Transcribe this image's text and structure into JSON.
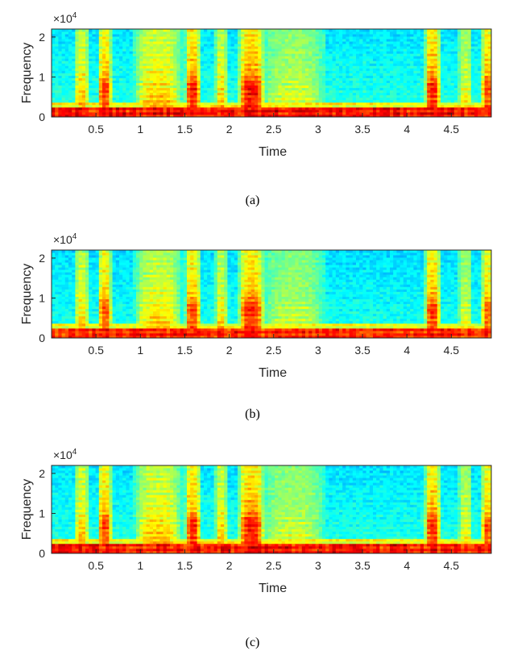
{
  "chart_data": [
    {
      "type": "heatmap",
      "panel_label": "(a)",
      "xlabel": "Time",
      "ylabel": "Frequency",
      "y_multiplier": "×10",
      "y_multiplier_exponent": "4",
      "xlim": [
        0,
        4.95
      ],
      "ylim": [
        0,
        2.2
      ],
      "xticks": [
        0.5,
        1,
        1.5,
        2,
        2.5,
        3,
        3.5,
        4,
        4.5
      ],
      "xtick_labels": [
        "0.5",
        "1",
        "1.5",
        "2",
        "2.5",
        "3",
        "3.5",
        "4",
        "4.5"
      ],
      "yticks": [
        0,
        1,
        2
      ],
      "ytick_labels": [
        "0",
        "1",
        "2"
      ],
      "colormap": "jet",
      "intensity_scale": 1.0
    },
    {
      "type": "heatmap",
      "panel_label": "(b)",
      "xlabel": "Time",
      "ylabel": "Frequency",
      "y_multiplier": "×10",
      "y_multiplier_exponent": "4",
      "xlim": [
        0,
        4.95
      ],
      "ylim": [
        0,
        2.2
      ],
      "xticks": [
        0.5,
        1,
        1.5,
        2,
        2.5,
        3,
        3.5,
        4,
        4.5
      ],
      "xtick_labels": [
        "0.5",
        "1",
        "1.5",
        "2",
        "2.5",
        "3",
        "3.5",
        "4",
        "4.5"
      ],
      "yticks": [
        0,
        1,
        2
      ],
      "ytick_labels": [
        "0",
        "1",
        "2"
      ],
      "colormap": "jet",
      "intensity_scale": 0.97
    },
    {
      "type": "heatmap",
      "panel_label": "(c)",
      "xlabel": "Time",
      "ylabel": "Frequency",
      "y_multiplier": "×10",
      "y_multiplier_exponent": "4",
      "xlim": [
        0,
        4.95
      ],
      "ylim": [
        0,
        2.2
      ],
      "xticks": [
        0.5,
        1,
        1.5,
        2,
        2.5,
        3,
        3.5,
        4,
        4.5
      ],
      "xtick_labels": [
        "0.5",
        "1",
        "1.5",
        "2",
        "2.5",
        "3",
        "3.5",
        "4",
        "4.5"
      ],
      "yticks": [
        0,
        1,
        2
      ],
      "ytick_labels": [
        "0",
        "1",
        "2"
      ],
      "colormap": "jet",
      "intensity_scale": 0.99
    }
  ],
  "speech_segments_seconds": [
    {
      "start": 0.28,
      "end": 0.4,
      "strength": 0.62
    },
    {
      "start": 0.54,
      "end": 0.66,
      "strength": 0.75
    },
    {
      "start": 0.95,
      "end": 1.45,
      "strength": 0.6
    },
    {
      "start": 1.52,
      "end": 1.66,
      "strength": 0.8
    },
    {
      "start": 1.86,
      "end": 1.96,
      "strength": 0.58
    },
    {
      "start": 2.12,
      "end": 2.38,
      "strength": 0.85
    },
    {
      "start": 2.4,
      "end": 3.05,
      "strength": 0.38
    },
    {
      "start": 4.22,
      "end": 4.36,
      "strength": 0.82
    },
    {
      "start": 4.6,
      "end": 4.72,
      "strength": 0.45
    },
    {
      "start": 4.86,
      "end": 4.95,
      "strength": 0.72
    }
  ]
}
